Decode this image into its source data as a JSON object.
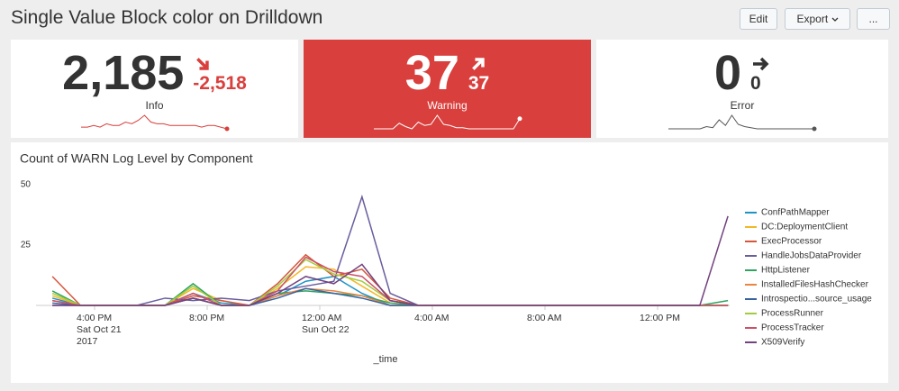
{
  "header": {
    "title": "Single Value Block color on Drilldown",
    "buttons": [
      "Edit",
      "Export",
      "..."
    ]
  },
  "single_values": [
    {
      "value": 2185,
      "value_label": "2,185",
      "delta": -2518,
      "delta_label": "-2,518",
      "label": "Info",
      "trend": "down",
      "block": false,
      "value_color": "#333333",
      "delta_color": "#d93f3c",
      "spark_color": "#d93f3c",
      "sparkline": [
        1,
        1,
        2,
        1,
        3,
        2,
        2,
        4,
        3,
        5,
        8,
        4,
        3,
        3,
        2,
        2,
        2,
        2,
        2,
        1,
        2,
        2,
        1,
        0
      ]
    },
    {
      "value": 37,
      "value_label": "37",
      "delta": 37,
      "delta_label": "37",
      "label": "Warning",
      "trend": "up",
      "block": true,
      "block_color": "#d93f3c",
      "value_color": "#ffffff",
      "delta_color": "#ffffff",
      "spark_color": "#ffffff",
      "sparkline": [
        0,
        0,
        0,
        0,
        5,
        2,
        0,
        6,
        3,
        4,
        12,
        4,
        3,
        1,
        1,
        0,
        0,
        0,
        0,
        0,
        0,
        0,
        0,
        9
      ]
    },
    {
      "value": 0,
      "value_label": "0",
      "delta": 0,
      "delta_label": "0",
      "label": "Error",
      "trend": "flat",
      "block": false,
      "value_color": "#333333",
      "delta_color": "#333333",
      "spark_color": "#555555",
      "sparkline": [
        0,
        0,
        0,
        0,
        0,
        0,
        2,
        1,
        8,
        3,
        12,
        4,
        2,
        1,
        0,
        0,
        0,
        0,
        0,
        0,
        0,
        0,
        0,
        0
      ]
    }
  ],
  "chart_data": {
    "type": "line",
    "title": "Count of WARN Log Level by Component",
    "x_label": "_time",
    "x": [
      "2017-10-21T14:30",
      "2017-10-21T15:30",
      "2017-10-21T16:30",
      "2017-10-21T17:30",
      "2017-10-21T18:30",
      "2017-10-21T19:30",
      "2017-10-21T20:30",
      "2017-10-21T21:30",
      "2017-10-21T22:30",
      "2017-10-21T23:30",
      "2017-10-22T00:30",
      "2017-10-22T01:30",
      "2017-10-22T02:30",
      "2017-10-22T03:30",
      "2017-10-22T04:30",
      "2017-10-22T05:30",
      "2017-10-22T06:30",
      "2017-10-22T07:30",
      "2017-10-22T08:30",
      "2017-10-22T09:30",
      "2017-10-22T10:30",
      "2017-10-22T11:30",
      "2017-10-22T12:30",
      "2017-10-22T13:30",
      "2017-10-22T14:30"
    ],
    "series": [
      {
        "name": "ConfPathMapper",
        "color": "#1e93c6",
        "values": [
          3,
          0,
          0,
          0,
          0,
          5,
          1,
          0,
          4,
          10,
          12,
          5,
          0,
          0,
          0,
          0,
          0,
          0,
          0,
          0,
          0,
          0,
          0,
          0,
          0
        ]
      },
      {
        "name": "DC:DeploymentClient",
        "color": "#f2b827",
        "values": [
          4,
          0,
          0,
          0,
          0,
          7,
          2,
          0,
          7,
          16,
          15,
          8,
          1,
          0,
          0,
          0,
          0,
          0,
          0,
          0,
          0,
          0,
          0,
          0,
          0
        ]
      },
      {
        "name": "ExecProcessor",
        "color": "#d6563c",
        "values": [
          12,
          0,
          0,
          0,
          0,
          4,
          2,
          0,
          9,
          21,
          12,
          15,
          3,
          0,
          0,
          0,
          0,
          0,
          0,
          0,
          0,
          0,
          0,
          0,
          0
        ]
      },
      {
        "name": "HandleJobsDataProvider",
        "color": "#6a5c9e",
        "values": [
          0,
          0,
          0,
          0,
          3,
          2,
          3,
          2,
          6,
          8,
          10,
          45,
          5,
          0,
          0,
          0,
          0,
          0,
          0,
          0,
          0,
          0,
          0,
          0,
          0
        ]
      },
      {
        "name": "HttpListener",
        "color": "#31a35f",
        "values": [
          6,
          0,
          0,
          0,
          0,
          9,
          0,
          0,
          5,
          6,
          5,
          4,
          1,
          0,
          0,
          0,
          0,
          0,
          0,
          0,
          0,
          0,
          0,
          0,
          2
        ]
      },
      {
        "name": "InstalledFilesHashChecker",
        "color": "#ed8440",
        "values": [
          2,
          0,
          0,
          0,
          0,
          3,
          0,
          0,
          4,
          7,
          6,
          4,
          0,
          0,
          0,
          0,
          0,
          0,
          0,
          0,
          0,
          0,
          0,
          0,
          0
        ]
      },
      {
        "name": "Introspectio...source_usage",
        "color": "#3863a0",
        "values": [
          1,
          0,
          0,
          0,
          0,
          3,
          0,
          0,
          3,
          7,
          5,
          3,
          0,
          0,
          0,
          0,
          0,
          0,
          0,
          0,
          0,
          0,
          0,
          0,
          0
        ]
      },
      {
        "name": "ProcessRunner",
        "color": "#a2cc3e",
        "values": [
          5,
          0,
          0,
          0,
          0,
          8,
          0,
          0,
          8,
          19,
          13,
          10,
          2,
          0,
          0,
          0,
          0,
          0,
          0,
          0,
          0,
          0,
          0,
          0,
          0
        ]
      },
      {
        "name": "ProcessTracker",
        "color": "#cc5068",
        "values": [
          2,
          0,
          0,
          0,
          0,
          5,
          0,
          0,
          6,
          20,
          14,
          12,
          2,
          0,
          0,
          0,
          0,
          0,
          0,
          0,
          0,
          0,
          0,
          0,
          0
        ]
      },
      {
        "name": "X509Verify",
        "color": "#73427f",
        "values": [
          0,
          0,
          0,
          0,
          0,
          3,
          0,
          0,
          5,
          12,
          9,
          17,
          2,
          0,
          0,
          0,
          0,
          0,
          0,
          0,
          0,
          0,
          0,
          0,
          37
        ]
      }
    ],
    "xlim": [
      "2017-10-21T14:00",
      "2017-10-22T15:00"
    ],
    "xticks": [
      {
        "value": "2017-10-21T16:00",
        "label": [
          "4:00 PM",
          "Sat Oct 21",
          "2017"
        ]
      },
      {
        "value": "2017-10-21T20:00",
        "label": [
          "8:00 PM"
        ]
      },
      {
        "value": "2017-10-22T00:00",
        "label": [
          "12:00 AM",
          "Sun Oct 22"
        ]
      },
      {
        "value": "2017-10-22T04:00",
        "label": [
          "4:00 AM"
        ]
      },
      {
        "value": "2017-10-22T08:00",
        "label": [
          "8:00 AM"
        ]
      },
      {
        "value": "2017-10-22T12:00",
        "label": [
          "12:00 PM"
        ]
      }
    ],
    "ylim": [
      0,
      50
    ],
    "yticks": [
      25,
      50
    ],
    "legend": "right"
  }
}
